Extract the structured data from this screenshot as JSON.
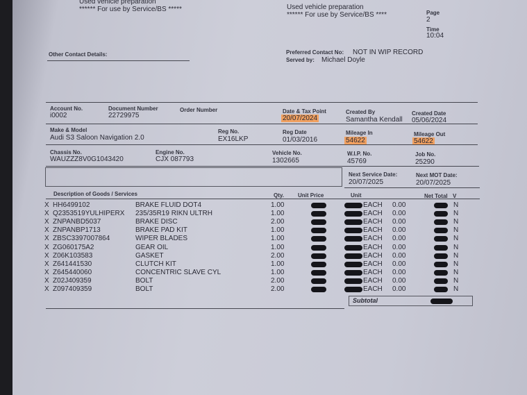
{
  "header": {
    "left_line1": "Used vehicle preparation",
    "left_line2": "****** For use by Service/BS *****",
    "right_line1": "Used vehicle preparation",
    "right_line2": "****** For use by Service/BS ****",
    "page_label": "Page",
    "page_value": "2",
    "time_label": "Time",
    "time_value": "10:04",
    "other_contact_label": "Other Contact Details:",
    "preferred_contact_label": "Preferred Contact No:",
    "preferred_contact_value": "NOT IN WIP RECORD",
    "served_by_label": "Served by:",
    "served_by_value": "Michael Doyle"
  },
  "details": {
    "account_no": {
      "label": "Account No.",
      "value": "i0002"
    },
    "document_number": {
      "label": "Document Number",
      "value": "22729975"
    },
    "order_number": {
      "label": "Order Number",
      "value": ""
    },
    "date_tax_point": {
      "label": "Date & Tax Point",
      "value": "20/07/2024"
    },
    "created_by": {
      "label": "Created By",
      "value": "Samantha Kendall"
    },
    "created_date": {
      "label": "Created Date",
      "value": "05/06/2024"
    },
    "make_model": {
      "label": "Make & Model",
      "value": "Audi S3 Saloon Navigation 2.0"
    },
    "reg_no": {
      "label": "Reg No.",
      "value": "EX16LKP"
    },
    "reg_date": {
      "label": "Reg Date",
      "value": "01/03/2016"
    },
    "mileage_in": {
      "label": "Mileage In",
      "value": "54622"
    },
    "mileage_out": {
      "label": "Mileage Out",
      "value": "54622"
    },
    "chassis_no": {
      "label": "Chassis No.",
      "value": "WAUZZZ8V0G1043420"
    },
    "engine_no": {
      "label": "Engine No.",
      "value": "CJX 087793"
    },
    "vehicle_no": {
      "label": "Vehicle No.",
      "value": "1302665"
    },
    "wip_no": {
      "label": "W.I.P. No.",
      "value": "45769"
    },
    "job_no": {
      "label": "Job No.",
      "value": "25290"
    },
    "next_service": {
      "label": "Next Service Date:",
      "value": "20/07/2025"
    },
    "next_mot": {
      "label": "Next MOT Date:",
      "value": "20/07/2025"
    },
    "highlight_color": "#f0a060"
  },
  "table": {
    "headers": {
      "description": "Description of Goods / Services",
      "qty": "Qty.",
      "unit_price": "Unit Price",
      "unit": "Unit",
      "net_total": "Net Total",
      "v": "V"
    },
    "rows": [
      {
        "x": "X",
        "code": "HH6499102",
        "desc": "BRAKE FLUID DOT4",
        "qty": "1.00",
        "unit": "EACH",
        "disc": "0.00",
        "v": "N"
      },
      {
        "x": "X",
        "code": "Q2353519YULHIPERX",
        "desc": "235/35R19 RIKN ULTRH",
        "qty": "1.00",
        "unit": "EACH",
        "disc": "0.00",
        "v": "N"
      },
      {
        "x": "X",
        "code": "ZNPANBD5037",
        "desc": "BRAKE DISC",
        "qty": "2.00",
        "unit": "EACH",
        "disc": "0.00",
        "v": "N"
      },
      {
        "x": "X",
        "code": "ZNPANBP1713",
        "desc": "BRAKE PAD KIT",
        "qty": "1.00",
        "unit": "EACH",
        "disc": "0.00",
        "v": "N"
      },
      {
        "x": "X",
        "code": "ZBSC3397007864",
        "desc": "WIPER BLADES",
        "qty": "1.00",
        "unit": "EACH",
        "disc": "0.00",
        "v": "N"
      },
      {
        "x": "X",
        "code": "ZG060175A2",
        "desc": "GEAR OIL",
        "qty": "1.00",
        "unit": "EACH",
        "disc": "0.00",
        "v": "N"
      },
      {
        "x": "X",
        "code": "Z06K103583",
        "desc": "GASKET",
        "qty": "2.00",
        "unit": "EACH",
        "disc": "0.00",
        "v": "N"
      },
      {
        "x": "X",
        "code": "Z641441530",
        "desc": "CLUTCH KIT",
        "qty": "1.00",
        "unit": "EACH",
        "disc": "0.00",
        "v": "N"
      },
      {
        "x": "X",
        "code": "Z645440060",
        "desc": "CONCENTRIC SLAVE CYL",
        "qty": "1.00",
        "unit": "EACH",
        "disc": "0.00",
        "v": "N"
      },
      {
        "x": "X",
        "code": "Z02J409359",
        "desc": "BOLT",
        "qty": "2.00",
        "unit": "EACH",
        "disc": "0.00",
        "v": "N"
      },
      {
        "x": "X",
        "code": "Z097409359",
        "desc": "BOLT",
        "qty": "2.00",
        "unit": "EACH",
        "disc": "0.00",
        "v": "N"
      }
    ],
    "subtotal_label": "Subtotal"
  }
}
